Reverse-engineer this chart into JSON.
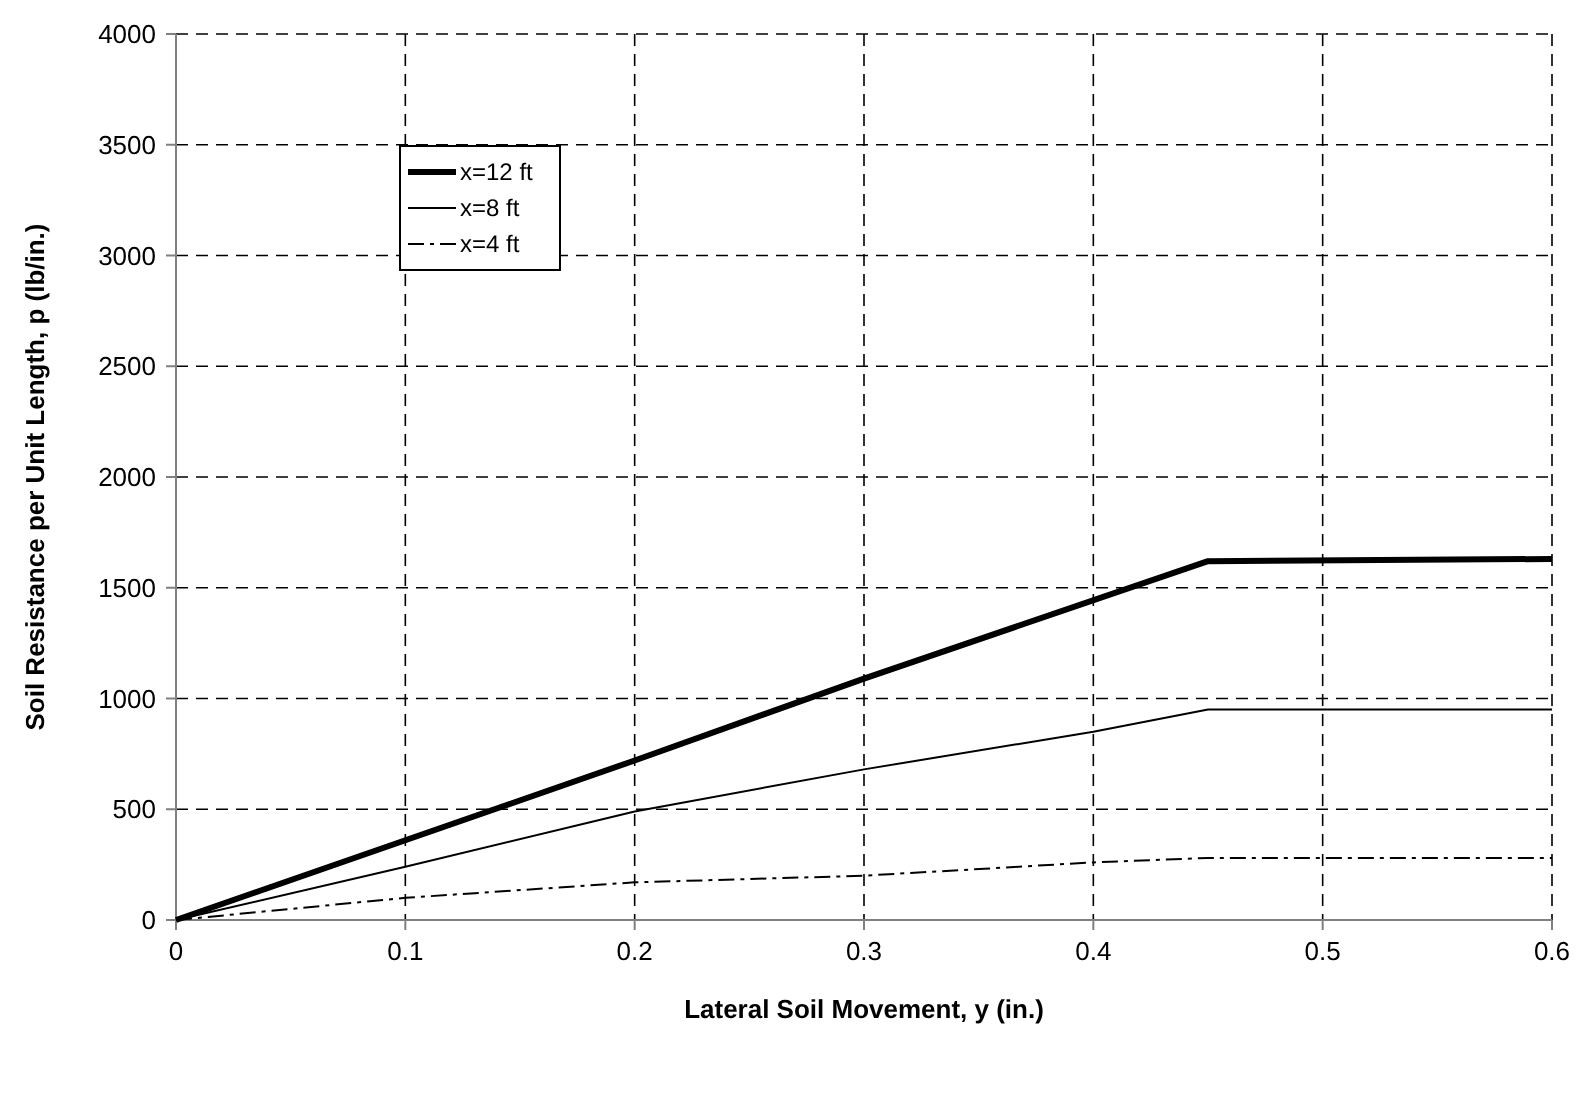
{
  "chart_data": {
    "type": "line",
    "xlabel": "Lateral Soil Movement, y (in.)",
    "ylabel": "Soil Resistance per Unit Length, p (lb/in.)",
    "xlim": [
      0,
      0.6
    ],
    "ylim": [
      0,
      4000
    ],
    "xticks": [
      0,
      0.1,
      0.2,
      0.3,
      0.4,
      0.5,
      0.6
    ],
    "yticks": [
      0,
      500,
      1000,
      1500,
      2000,
      2500,
      3000,
      3500,
      4000
    ],
    "grid": true,
    "legend": "top left",
    "marker": "none",
    "series": [
      {
        "name": "x=12 ft",
        "color": "#000000",
        "line_style": "solid",
        "x": [
          0,
          0.1,
          0.2,
          0.3,
          0.45,
          0.6
        ],
        "values": [
          0,
          360,
          720,
          1090,
          1620,
          1630
        ]
      },
      {
        "name": "x=8 ft",
        "color": "#000000",
        "line_style": "solid",
        "x": [
          0,
          0.1,
          0.2,
          0.3,
          0.4,
          0.45,
          0.6
        ],
        "values": [
          0,
          240,
          490,
          680,
          850,
          950,
          950
        ]
      },
      {
        "name": "x=4 ft",
        "color": "#000000",
        "line_style": "dashdot",
        "x": [
          0,
          0.1,
          0.2,
          0.3,
          0.4,
          0.45,
          0.6
        ],
        "values": [
          0,
          100,
          170,
          200,
          260,
          280,
          280
        ]
      }
    ]
  }
}
